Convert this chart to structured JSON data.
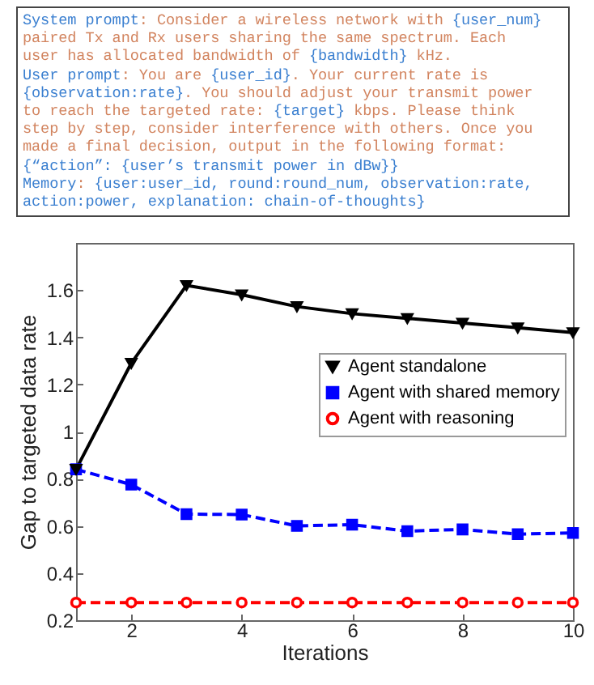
{
  "chart_data": {
    "type": "line",
    "xlabel": "Iterations",
    "ylabel": "Gap to targeted data rate",
    "annotations": [
      "System prompt: Consider a wireless network with {user_num} paired Tx and Rx users sharing the same spectrum. Each user has allocated bandwidth of {bandwidth} kHz.",
      "User prompt: You are {user_id}. Your current rate is {observation:rate}. You should adjust your transmit power to reach the targeted rate: {target} kbps. Please think step by step, consider interference with others. Once you made a final decision, output in the following format: {“action”: {user’s transmit power in dBw}}",
      "Memory: {user:user_id, round:round_num, observation:rate, action:power, explanation: chain-of-thoughts}"
    ],
    "x": [
      1,
      2,
      3,
      4,
      5,
      6,
      7,
      8,
      9,
      10
    ],
    "series": [
      {
        "name": "Agent standalone",
        "color": "#000000",
        "marker": "triangle",
        "line_style": "solid",
        "values": [
          0.84,
          1.29,
          1.62,
          1.58,
          1.53,
          1.5,
          1.48,
          1.46,
          1.44,
          1.42
        ]
      },
      {
        "name": "Agent with shared memory",
        "color": "#0000ff",
        "marker": "square",
        "line_style": "dashed",
        "values": [
          0.84,
          0.775,
          0.65,
          0.648,
          0.6,
          0.605,
          0.578,
          0.585,
          0.565,
          0.57
        ]
      },
      {
        "name": "Agent with reasoning",
        "color": "#ff0000",
        "marker": "circle",
        "line_style": "dashed",
        "values": [
          0.275,
          0.275,
          0.275,
          0.275,
          0.275,
          0.275,
          0.275,
          0.275,
          0.275,
          0.275
        ]
      }
    ],
    "xlim": [
      1,
      10
    ],
    "xticks": [
      2,
      4,
      6,
      8,
      10
    ],
    "ylim": [
      0.2,
      1.8
    ],
    "yticks": [
      0.2,
      0.4,
      0.6,
      0.8,
      1,
      1.2,
      1.4,
      1.6
    ],
    "grid": false,
    "legend": "right"
  }
}
